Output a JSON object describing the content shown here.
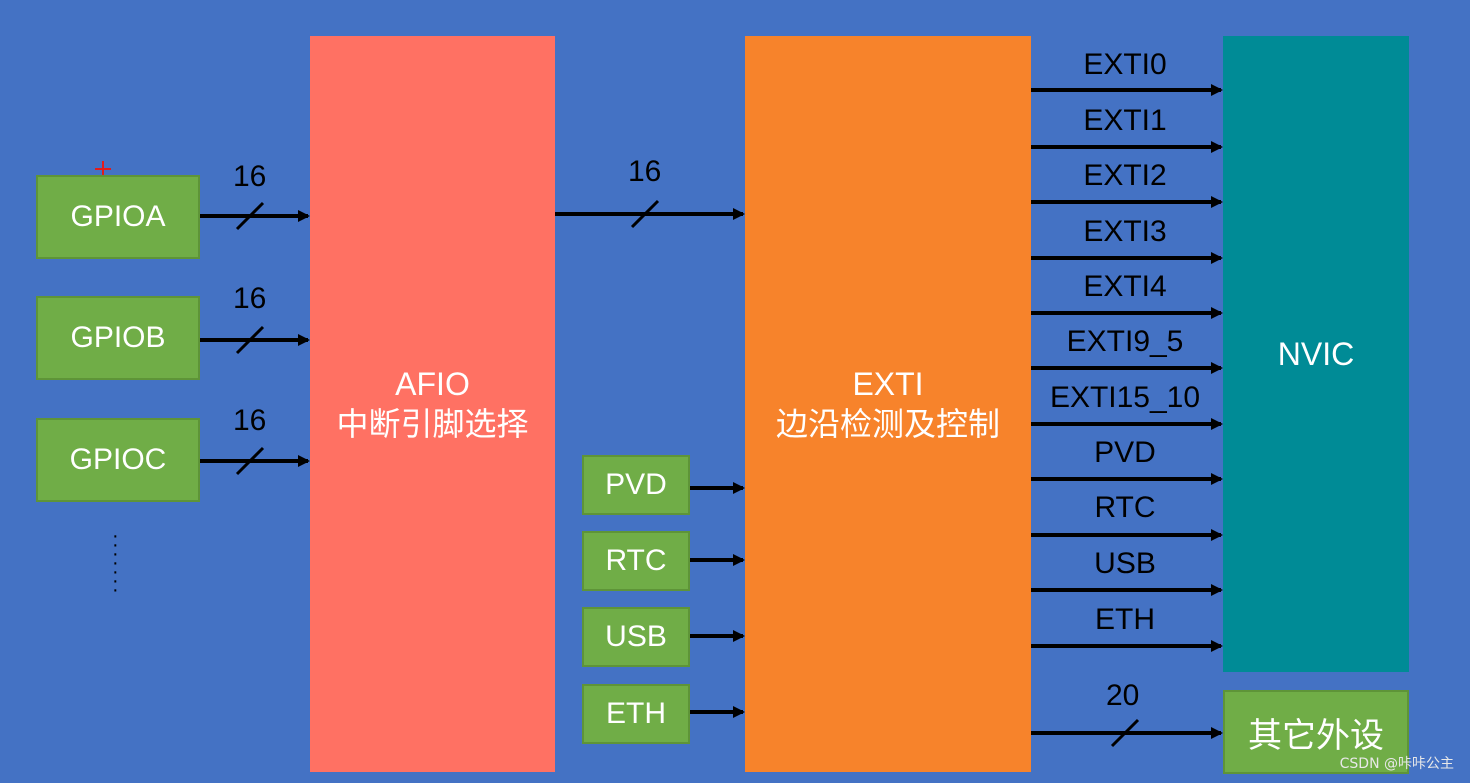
{
  "gpio_ports": [
    "GPIOA",
    "GPIOB",
    "GPIOC"
  ],
  "gpio_more": "⋮",
  "bus_width_labels": [
    "16",
    "16",
    "16"
  ],
  "afio": {
    "title": "AFIO",
    "subtitle": "中断引脚选择"
  },
  "afio_to_exti_label": "16",
  "extra_sources": [
    "PVD",
    "RTC",
    "USB",
    "ETH"
  ],
  "exti": {
    "title": "EXTI",
    "subtitle": "边沿检测及控制"
  },
  "exti_lines": [
    "EXTI0",
    "EXTI1",
    "EXTI2",
    "EXTI3",
    "EXTI4",
    "EXTI9_5",
    "EXTI15_10",
    "PVD",
    "RTC",
    "USB",
    "ETH"
  ],
  "nvic": {
    "title": "NVIC"
  },
  "other_bus_label": "20",
  "other_peripherals": {
    "title": "其它外设"
  },
  "watermark": "CSDN @咔咔公主",
  "colors": {
    "background": "#4472C4",
    "gpio": "#70AD47",
    "afio": "#FF7163",
    "exti": "#F7832B",
    "nvic": "#008B96",
    "wire": "#000000"
  }
}
